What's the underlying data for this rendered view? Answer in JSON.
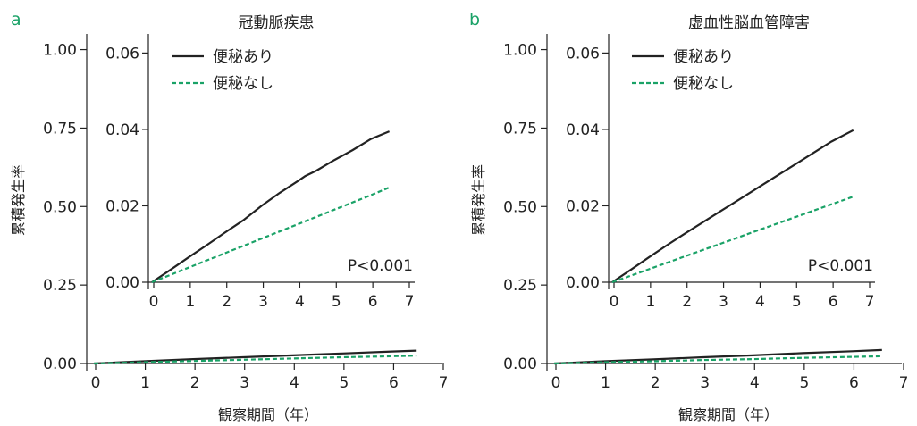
{
  "chart_data": [
    {
      "type": "line",
      "panel": "a",
      "title": "冠動脈疾患",
      "xlabel": "観察期間（年）",
      "ylabel": "累積発生率",
      "xlim": [
        0,
        7
      ],
      "ylim": [
        0,
        1.05
      ],
      "xticks": [
        "0",
        "1",
        "2",
        "3",
        "4",
        "5",
        "6",
        "7"
      ],
      "yticks": [
        "0.00",
        "0.25",
        "0.50",
        "0.75",
        "1.00"
      ],
      "series": [
        {
          "name": "便秘あり",
          "color": "#222222",
          "dash": false,
          "x": [
            0,
            1,
            2,
            3,
            4,
            5,
            6,
            6.5
          ],
          "y": [
            0,
            0.007,
            0.014,
            0.02,
            0.026,
            0.032,
            0.038,
            0.041
          ]
        },
        {
          "name": "便秘なし",
          "color": "#1aa267",
          "dash": true,
          "x": [
            0,
            1,
            2,
            3,
            4,
            5,
            6,
            6.5
          ],
          "y": [
            0,
            0.004,
            0.008,
            0.012,
            0.016,
            0.02,
            0.023,
            0.025
          ]
        }
      ],
      "inset": {
        "xlim": [
          0,
          7
        ],
        "ylim": [
          0,
          0.065
        ],
        "xticks": [
          "0",
          "1",
          "2",
          "3",
          "4",
          "5",
          "6",
          "7"
        ],
        "yticks": [
          "0.00",
          "0.02",
          "0.04",
          "0.06"
        ],
        "annotation": "P<0.001",
        "series": [
          {
            "name": "便秘あり",
            "color": "#222222",
            "dash": false,
            "x": [
              0,
              0.5,
              1,
              1.5,
              2,
              2.5,
              3,
              3.5,
              4,
              4.2,
              4.5,
              5,
              5.5,
              6,
              6.5
            ],
            "y": [
              0,
              0.0032,
              0.0065,
              0.0097,
              0.013,
              0.0162,
              0.02,
              0.0234,
              0.0265,
              0.0278,
              0.0292,
              0.032,
              0.0346,
              0.0375,
              0.0395
            ]
          },
          {
            "name": "便秘なし",
            "color": "#1aa267",
            "dash": true,
            "x": [
              0,
              1,
              2,
              3,
              4,
              5,
              6,
              6.5
            ],
            "y": [
              0,
              0.0038,
              0.0076,
              0.0114,
              0.0152,
              0.019,
              0.0228,
              0.0248
            ]
          }
        ]
      }
    },
    {
      "type": "line",
      "panel": "b",
      "title": "虚血性脳血管障害",
      "xlabel": "観察期間（年）",
      "ylabel": "累積発生率",
      "xlim": [
        0,
        7
      ],
      "ylim": [
        0,
        1.05
      ],
      "xticks": [
        "0",
        "1",
        "2",
        "3",
        "4",
        "5",
        "6",
        "7"
      ],
      "yticks": [
        "0.00",
        "0.25",
        "0.50",
        "0.75",
        "1.00"
      ],
      "series": [
        {
          "name": "便秘あり",
          "color": "#222222",
          "dash": false,
          "x": [
            0,
            1,
            2,
            3,
            4,
            5,
            6,
            6.6
          ],
          "y": [
            0,
            0.007,
            0.013,
            0.02,
            0.026,
            0.033,
            0.039,
            0.043
          ]
        },
        {
          "name": "便秘なし",
          "color": "#1aa267",
          "dash": true,
          "x": [
            0,
            1,
            2,
            3,
            4,
            5,
            6,
            6.6
          ],
          "y": [
            0,
            0.004,
            0.007,
            0.011,
            0.014,
            0.018,
            0.021,
            0.023
          ]
        }
      ],
      "inset": {
        "xlim": [
          0,
          7
        ],
        "ylim": [
          0,
          0.065
        ],
        "xticks": [
          "0",
          "1",
          "2",
          "3",
          "4",
          "5",
          "6",
          "7"
        ],
        "yticks": [
          "0.00",
          "0.02",
          "0.04",
          "0.06"
        ],
        "annotation": "P<0.001",
        "series": [
          {
            "name": "便秘あり",
            "color": "#222222",
            "dash": false,
            "x": [
              0,
              0.5,
              1,
              1.5,
              2,
              2.5,
              3,
              3.5,
              4,
              4.5,
              5,
              5.5,
              6,
              6.6
            ],
            "y": [
              0,
              0.0032,
              0.0065,
              0.0097,
              0.0128,
              0.0158,
              0.0188,
              0.0218,
              0.0248,
              0.0278,
              0.0308,
              0.0338,
              0.0368,
              0.0398
            ]
          },
          {
            "name": "便秘なし",
            "color": "#1aa267",
            "dash": true,
            "x": [
              0,
              1,
              2,
              3,
              4,
              5,
              6,
              6.6
            ],
            "y": [
              0,
              0.0034,
              0.0068,
              0.0102,
              0.0136,
              0.017,
              0.0204,
              0.0224
            ]
          }
        ]
      }
    }
  ]
}
